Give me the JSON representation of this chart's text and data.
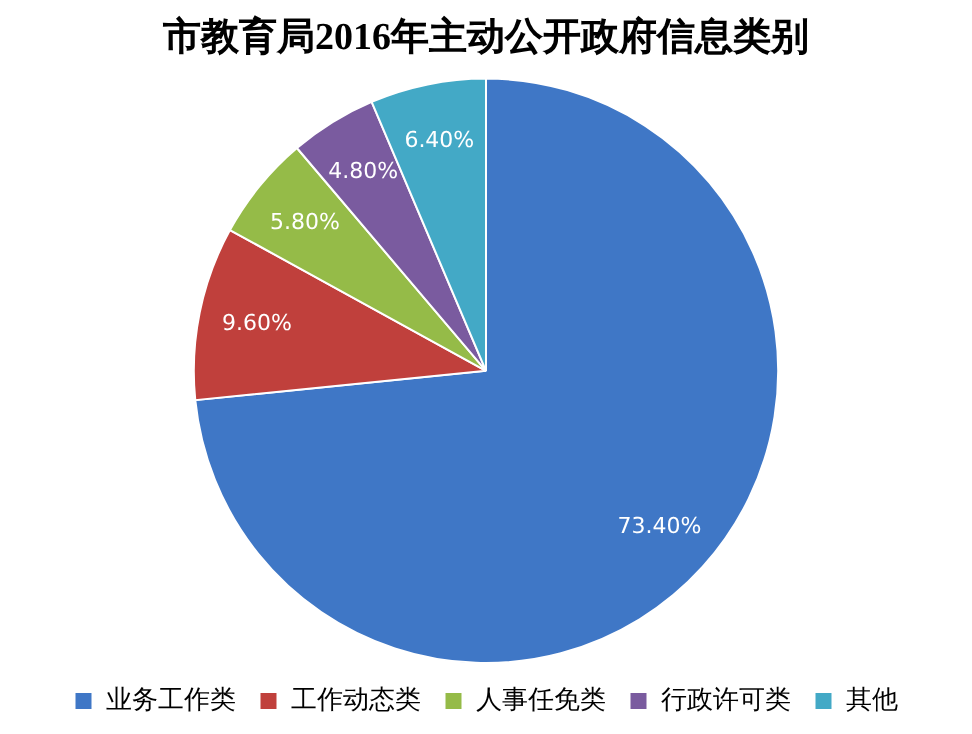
{
  "chart_data": {
    "type": "pie",
    "title": "市教育局2016年主动公开政府信息类别",
    "categories": [
      "业务工作类",
      "工作动态类",
      "人事任免类",
      "行政许可类",
      "其他"
    ],
    "values": [
      73.4,
      9.6,
      5.8,
      4.8,
      6.4
    ],
    "colors": [
      "#3f77c6",
      "#c0403c",
      "#95bb48",
      "#7a5b9f",
      "#43a9c6"
    ],
    "value_labels": [
      "73.40%",
      "9.60%",
      "5.80%",
      "4.80%",
      "6.40%"
    ],
    "legend": "bottom"
  }
}
